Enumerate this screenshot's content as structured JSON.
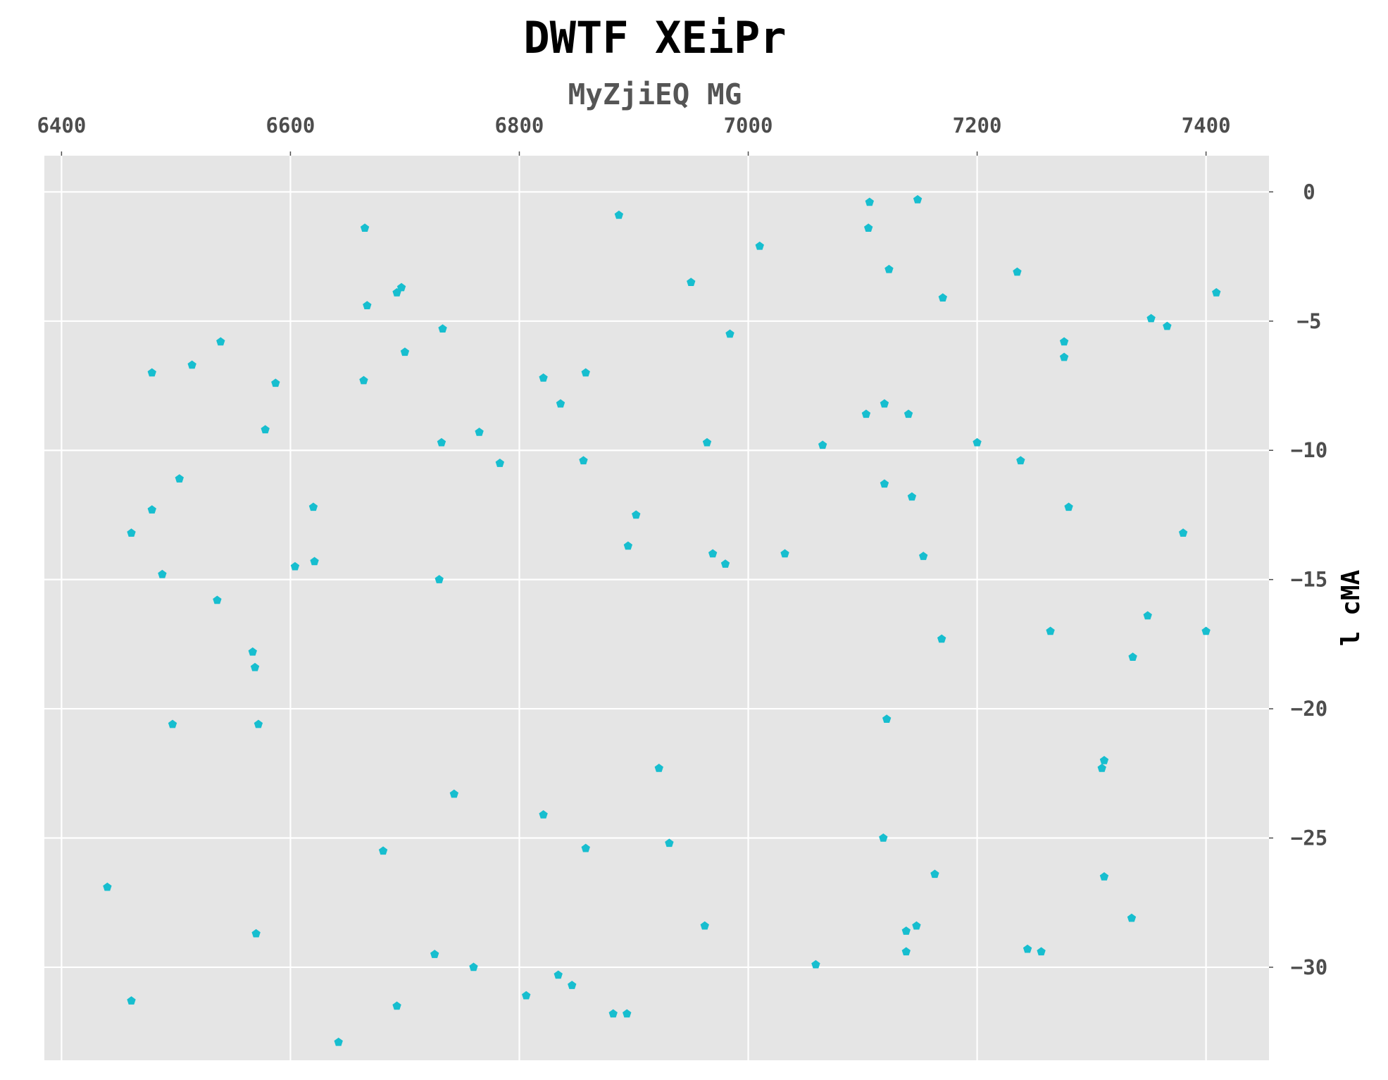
{
  "chart_data": {
    "type": "scatter",
    "title": "DWTF XEiPr",
    "subtitle": "MyZjiEQ  MG",
    "xlabel": "",
    "ylabel": "l cMA",
    "x_axis_position": "top",
    "y_axis_position": "right",
    "xlim": [
      6385,
      7455
    ],
    "ylim": [
      -33.6,
      1.4
    ],
    "x_ticks": [
      6400,
      6600,
      6800,
      7000,
      7200,
      7400
    ],
    "y_ticks": [
      0,
      -5,
      -10,
      -15,
      -20,
      -25,
      -30
    ],
    "grid": true,
    "marker": "pentagon",
    "colors": {
      "background": "#e5e5e5",
      "grid": "#ffffff",
      "marker": "#17becf"
    },
    "series": [
      {
        "points": [
          [
            6440,
            -26.9
          ],
          [
            6461,
            -31.3
          ],
          [
            6461,
            -13.2
          ],
          [
            6479,
            -7.0
          ],
          [
            6479,
            -12.3
          ],
          [
            6488,
            -14.8
          ],
          [
            6497,
            -20.6
          ],
          [
            6503,
            -11.1
          ],
          [
            6514,
            -6.7
          ],
          [
            6536,
            -15.8
          ],
          [
            6539,
            -5.8
          ],
          [
            6567,
            -17.8
          ],
          [
            6569,
            -18.4
          ],
          [
            6570,
            -28.7
          ],
          [
            6572,
            -20.6
          ],
          [
            6578,
            -9.2
          ],
          [
            6587,
            -7.4
          ],
          [
            6604,
            -14.5
          ],
          [
            6620,
            -12.2
          ],
          [
            6621,
            -14.3
          ],
          [
            6642,
            -32.9
          ],
          [
            6664,
            -7.3
          ],
          [
            6665,
            -1.4
          ],
          [
            6667,
            -4.4
          ],
          [
            6681,
            -25.5
          ],
          [
            6693,
            -31.5
          ],
          [
            6693,
            -3.9
          ],
          [
            6697,
            -3.7
          ],
          [
            6700,
            -6.2
          ],
          [
            6726,
            -29.5
          ],
          [
            6730,
            -15.0
          ],
          [
            6732,
            -9.7
          ],
          [
            6733,
            -5.3
          ],
          [
            6743,
            -23.3
          ],
          [
            6760,
            -30.0
          ],
          [
            6765,
            -9.3
          ],
          [
            6783,
            -10.5
          ],
          [
            6806,
            -31.1
          ],
          [
            6821,
            -7.2
          ],
          [
            6821,
            -24.1
          ],
          [
            6834,
            -30.3
          ],
          [
            6836,
            -8.2
          ],
          [
            6846,
            -30.7
          ],
          [
            6856,
            -10.4
          ],
          [
            6858,
            -25.4
          ],
          [
            6858,
            -7.0
          ],
          [
            6882,
            -31.8
          ],
          [
            6887,
            -0.9
          ],
          [
            6894,
            -31.8
          ],
          [
            6895,
            -13.7
          ],
          [
            6902,
            -12.5
          ],
          [
            6922,
            -22.3
          ],
          [
            6931,
            -25.2
          ],
          [
            6950,
            -3.5
          ],
          [
            6962,
            -28.4
          ],
          [
            6964,
            -9.7
          ],
          [
            6969,
            -14.0
          ],
          [
            6980,
            -14.4
          ],
          [
            6984,
            -5.5
          ],
          [
            7010,
            -2.1
          ],
          [
            7032,
            -14.0
          ],
          [
            7059,
            -29.9
          ],
          [
            7065,
            -9.8
          ],
          [
            7103,
            -8.6
          ],
          [
            7105,
            -1.4
          ],
          [
            7106,
            -0.4
          ],
          [
            7118,
            -25.0
          ],
          [
            7119,
            -11.3
          ],
          [
            7119,
            -8.2
          ],
          [
            7121,
            -20.4
          ],
          [
            7123,
            -3.0
          ],
          [
            7138,
            -28.6
          ],
          [
            7138,
            -29.4
          ],
          [
            7140,
            -8.6
          ],
          [
            7143,
            -11.8
          ],
          [
            7147,
            -28.4
          ],
          [
            7148,
            -0.3
          ],
          [
            7153,
            -14.1
          ],
          [
            7163,
            -26.4
          ],
          [
            7169,
            -17.3
          ],
          [
            7170,
            -4.1
          ],
          [
            7200,
            -9.7
          ],
          [
            7235,
            -3.1
          ],
          [
            7238,
            -10.4
          ],
          [
            7244,
            -29.3
          ],
          [
            7256,
            -29.4
          ],
          [
            7264,
            -17.0
          ],
          [
            7276,
            -5.8
          ],
          [
            7276,
            -6.4
          ],
          [
            7280,
            -12.2
          ],
          [
            7309,
            -22.3
          ],
          [
            7311,
            -22.0
          ],
          [
            7311,
            -26.5
          ],
          [
            7335,
            -28.1
          ],
          [
            7336,
            -18.0
          ],
          [
            7349,
            -16.4
          ],
          [
            7352,
            -4.9
          ],
          [
            7366,
            -5.2
          ],
          [
            7380,
            -13.2
          ],
          [
            7400,
            -17.0
          ],
          [
            7409,
            -3.9
          ]
        ]
      }
    ]
  }
}
